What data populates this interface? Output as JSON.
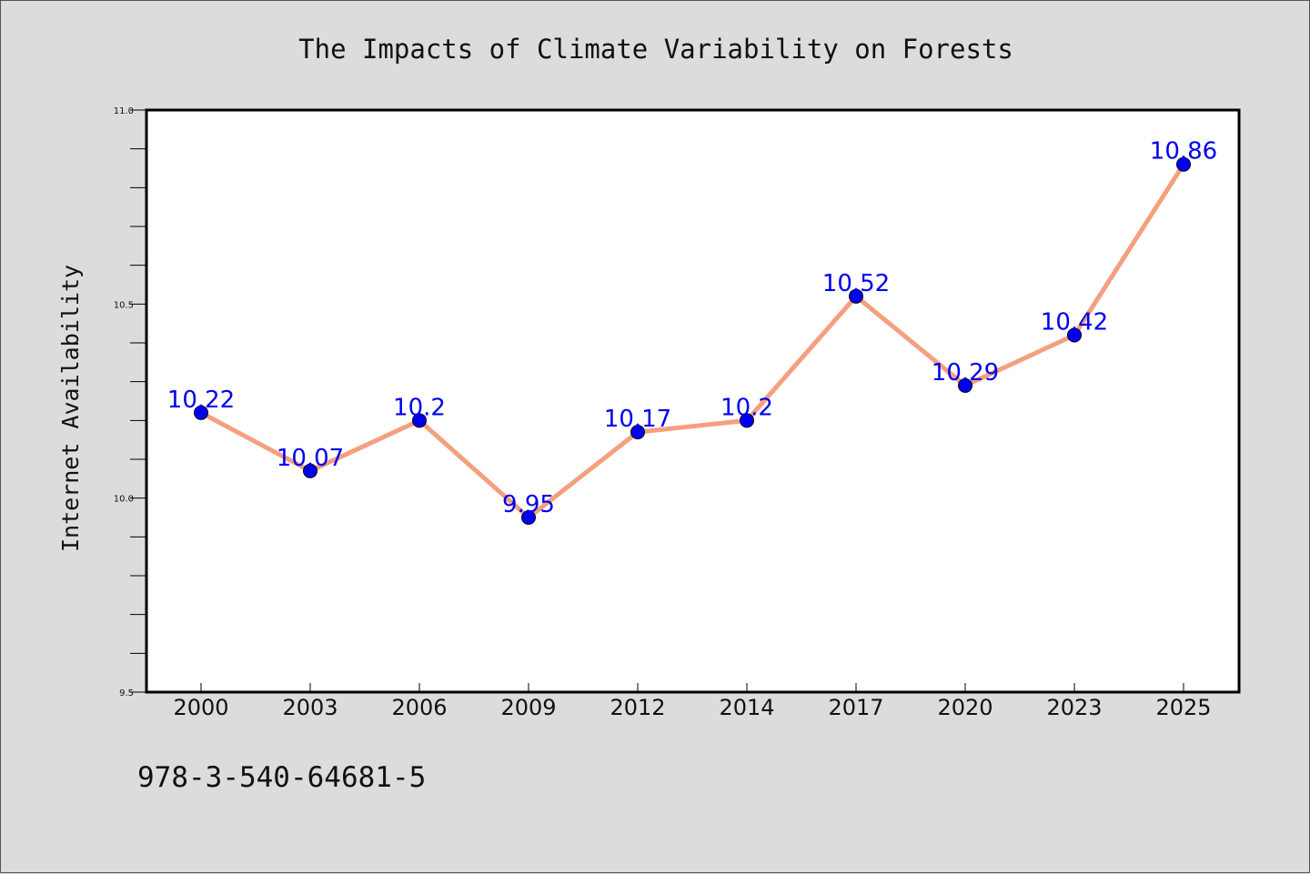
{
  "chart_data": {
    "type": "line",
    "title": "The Impacts of Climate Variability on Forests",
    "xlabel": "",
    "ylabel": "Internet Availability",
    "categories": [
      "2000",
      "2003",
      "2006",
      "2009",
      "2012",
      "2014",
      "2017",
      "2020",
      "2023",
      "2025"
    ],
    "values": [
      10.22,
      10.07,
      10.2,
      9.95,
      10.17,
      10.2,
      10.52,
      10.29,
      10.42,
      10.86
    ],
    "data_labels": [
      "10.22",
      "10.07",
      "10.2",
      "9.95",
      "10.17",
      "10.2",
      "10.52",
      "10.29",
      "10.42",
      "10.86"
    ],
    "ylim": [
      9.5,
      11.0
    ],
    "yticks": [
      "9.5",
      "10.0",
      "10.5",
      "11.0"
    ],
    "grid": false,
    "line_color": "#f4a07f",
    "marker_color": "#0000ee",
    "label_color": "#0000ee"
  },
  "annotation": "978-3-540-64681-5"
}
